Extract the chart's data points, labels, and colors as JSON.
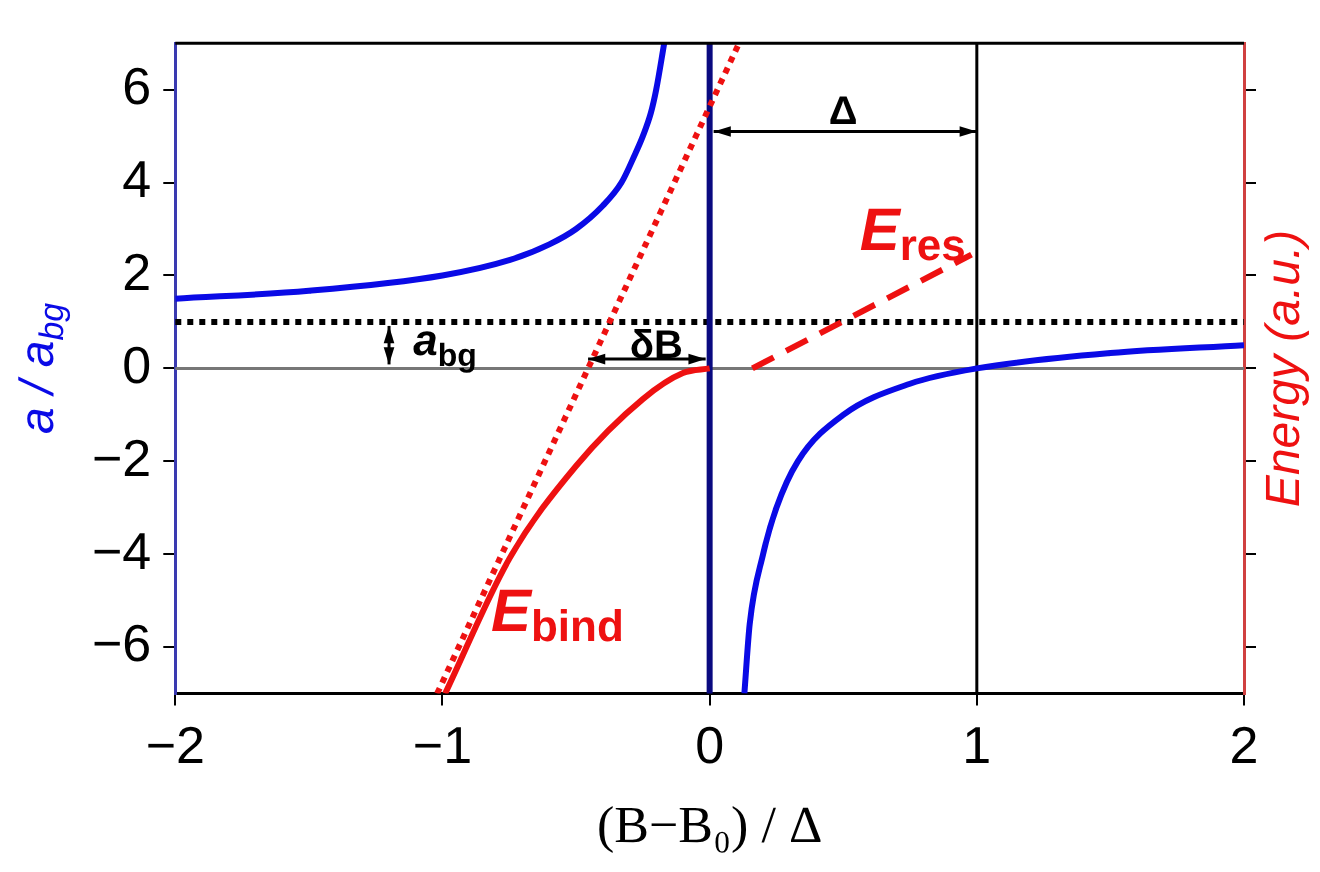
{
  "chart_data": {
    "type": "line",
    "xlabel": "(B−B₀) / Δ",
    "ylabel": "a / a$_{bg}$",
    "y2label": "Energy (a.u.)",
    "xlim": [
      -2,
      2
    ],
    "xticks": [
      {
        "value": -2,
        "label": "−2"
      },
      {
        "value": -1,
        "label": "−1"
      },
      0,
      1,
      2
    ],
    "ylim": [
      -7,
      7
    ],
    "yticks": [
      {
        "value": -6,
        "label": "−6"
      },
      {
        "value": -4,
        "label": "−4"
      },
      {
        "value": -2,
        "label": "−2"
      },
      0,
      2,
      4,
      6
    ],
    "grid": false,
    "legend": false,
    "marker": "none",
    "series": [
      {
        "color": "#0a0ae6",
        "x": [
          -2,
          -1.5,
          -1,
          -0.75,
          -0.6,
          -0.5,
          -0.4,
          -0.33,
          -0.28,
          -0.25,
          -0.22,
          -0.2,
          -0.17
        ],
        "values": [
          1.5,
          1.67,
          2,
          2.33,
          2.67,
          3,
          3.5,
          4,
          4.6,
          5,
          5.5,
          6,
          7
        ]
      },
      {
        "color": "#0a0ae6",
        "x": [
          0.13,
          0.15,
          0.2,
          0.25,
          0.33,
          0.5,
          0.75,
          1,
          1.5,
          2
        ],
        "values": [
          -7,
          -5.5,
          -4,
          -3,
          -2,
          -1,
          -0.33,
          0,
          0.33,
          0.5
        ]
      },
      {
        "color": "#ee1111",
        "x": [
          -0.99,
          -0.75,
          -0.5,
          -0.25,
          -0.1,
          0
        ],
        "values": [
          -7,
          -4.1,
          -2.1,
          -0.66,
          -0.1,
          0
        ]
      },
      {
        "color": "#ee1111",
        "line_style": "dotted",
        "x": [
          -1.02,
          0.11
        ],
        "values": [
          -7,
          7
        ]
      },
      {
        "color": "#ee1111",
        "line_style": "dashed",
        "x": [
          0.16,
          0.98
        ],
        "values": [
          0,
          2.45
        ]
      }
    ],
    "ref_lines": [
      {
        "axis": "y",
        "value": 1,
        "color": "#000000",
        "line_style": "dotted"
      },
      {
        "axis": "y",
        "value": 0,
        "color": "#777777"
      },
      {
        "axis": "x",
        "value": 0,
        "color": "#0a0a80"
      },
      {
        "axis": "x",
        "value": 1,
        "color": "#000000"
      }
    ],
    "annotations": [
      "Δ",
      "E$_{res}$",
      "a$_{bg}$",
      "δB",
      "E$_{bind}$"
    ]
  }
}
